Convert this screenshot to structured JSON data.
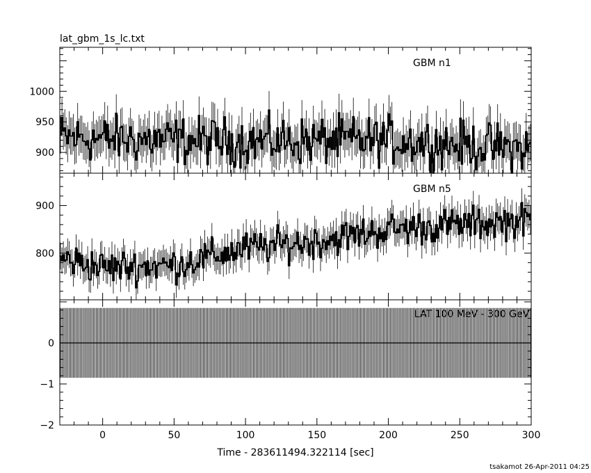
{
  "figure": {
    "file_title": "lat_gbm_1s_lc.txt",
    "footer": "tsakamot 26-Apr-2011 04:25"
  },
  "chart_data": [
    {
      "type": "line",
      "title": "lat_gbm_1s_lc.txt",
      "label": "GBM n1",
      "xlim": [
        -30,
        300
      ],
      "ylim": [
        866,
        1072
      ],
      "yticks": [
        {
          "value": 900,
          "label": "900"
        },
        {
          "value": 950,
          "label": "950"
        },
        {
          "value": 1000,
          "label": "1000"
        }
      ],
      "series": [
        {
          "trend_points": [
            [
              -30,
              925
            ],
            [
              0,
              922
            ],
            [
              100,
              918
            ],
            [
              200,
              920
            ],
            [
              300,
              905
            ]
          ],
          "amplitude": 38,
          "bin_width_sec": 1
        }
      ]
    },
    {
      "type": "line",
      "label": "GBM n5",
      "xlim": [
        -30,
        300
      ],
      "ylim": [
        702,
        968
      ],
      "yticks": [
        {
          "value": 800,
          "label": "800"
        },
        {
          "value": 900,
          "label": "900"
        }
      ],
      "series": [
        {
          "trend_points": [
            [
              -30,
              790
            ],
            [
              0,
              770
            ],
            [
              50,
              775
            ],
            [
              100,
              810
            ],
            [
              150,
              825
            ],
            [
              200,
              850
            ],
            [
              250,
              860
            ],
            [
              300,
              870
            ]
          ],
          "amplitude": 35,
          "bin_width_sec": 1
        }
      ]
    },
    {
      "type": "line",
      "label": "LAT 100 MeV - 300 GeV",
      "xlim": [
        -30,
        300
      ],
      "ylim": [
        -2,
        1.05
      ],
      "xlabel": "Time - 283611494.322114 [sec]",
      "xticks": [
        {
          "value": 0,
          "label": "0"
        },
        {
          "value": 50,
          "label": "50"
        },
        {
          "value": 100,
          "label": "100"
        },
        {
          "value": 150,
          "label": "150"
        },
        {
          "value": 200,
          "label": "200"
        },
        {
          "value": 250,
          "label": "250"
        },
        {
          "value": 300,
          "label": "300"
        }
      ],
      "yticks": [
        {
          "value": -2,
          "label": "−2"
        },
        {
          "value": -1,
          "label": "−1"
        },
        {
          "value": 0,
          "label": "0"
        }
      ],
      "series": [
        {
          "value": 0,
          "error_band": [
            -0.85,
            0.85
          ],
          "bin_width_sec": 1
        }
      ]
    }
  ]
}
